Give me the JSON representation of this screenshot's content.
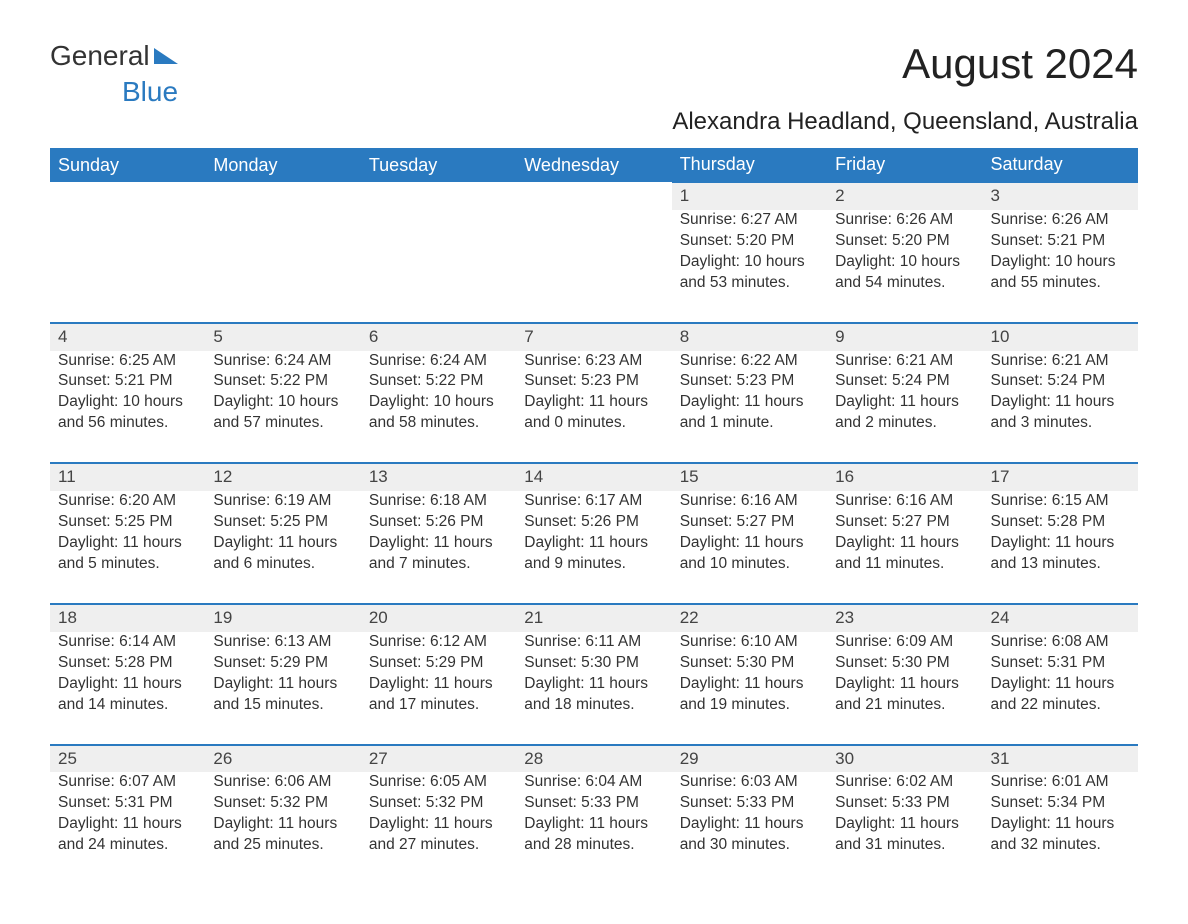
{
  "logo": {
    "text_general": "General",
    "text_blue": "Blue"
  },
  "title": "August 2024",
  "location": "Alexandra Headland, Queensland, Australia",
  "colors": {
    "accent": "#2a7ac0",
    "header_bg": "#2a7ac0",
    "header_text": "#ffffff",
    "daynum_bg": "#efefef",
    "text": "#333333",
    "background": "#ffffff"
  },
  "typography": {
    "title_fontsize": 42,
    "location_fontsize": 24,
    "header_fontsize": 18,
    "body_fontsize": 15.5,
    "logo_fontsize": 28
  },
  "calendar": {
    "columns": [
      "Sunday",
      "Monday",
      "Tuesday",
      "Wednesday",
      "Thursday",
      "Friday",
      "Saturday"
    ],
    "weeks": [
      [
        null,
        null,
        null,
        null,
        {
          "day": "1",
          "sunrise": "Sunrise: 6:27 AM",
          "sunset": "Sunset: 5:20 PM",
          "daylight1": "Daylight: 10 hours",
          "daylight2": "and 53 minutes."
        },
        {
          "day": "2",
          "sunrise": "Sunrise: 6:26 AM",
          "sunset": "Sunset: 5:20 PM",
          "daylight1": "Daylight: 10 hours",
          "daylight2": "and 54 minutes."
        },
        {
          "day": "3",
          "sunrise": "Sunrise: 6:26 AM",
          "sunset": "Sunset: 5:21 PM",
          "daylight1": "Daylight: 10 hours",
          "daylight2": "and 55 minutes."
        }
      ],
      [
        {
          "day": "4",
          "sunrise": "Sunrise: 6:25 AM",
          "sunset": "Sunset: 5:21 PM",
          "daylight1": "Daylight: 10 hours",
          "daylight2": "and 56 minutes."
        },
        {
          "day": "5",
          "sunrise": "Sunrise: 6:24 AM",
          "sunset": "Sunset: 5:22 PM",
          "daylight1": "Daylight: 10 hours",
          "daylight2": "and 57 minutes."
        },
        {
          "day": "6",
          "sunrise": "Sunrise: 6:24 AM",
          "sunset": "Sunset: 5:22 PM",
          "daylight1": "Daylight: 10 hours",
          "daylight2": "and 58 minutes."
        },
        {
          "day": "7",
          "sunrise": "Sunrise: 6:23 AM",
          "sunset": "Sunset: 5:23 PM",
          "daylight1": "Daylight: 11 hours",
          "daylight2": "and 0 minutes."
        },
        {
          "day": "8",
          "sunrise": "Sunrise: 6:22 AM",
          "sunset": "Sunset: 5:23 PM",
          "daylight1": "Daylight: 11 hours",
          "daylight2": "and 1 minute."
        },
        {
          "day": "9",
          "sunrise": "Sunrise: 6:21 AM",
          "sunset": "Sunset: 5:24 PM",
          "daylight1": "Daylight: 11 hours",
          "daylight2": "and 2 minutes."
        },
        {
          "day": "10",
          "sunrise": "Sunrise: 6:21 AM",
          "sunset": "Sunset: 5:24 PM",
          "daylight1": "Daylight: 11 hours",
          "daylight2": "and 3 minutes."
        }
      ],
      [
        {
          "day": "11",
          "sunrise": "Sunrise: 6:20 AM",
          "sunset": "Sunset: 5:25 PM",
          "daylight1": "Daylight: 11 hours",
          "daylight2": "and 5 minutes."
        },
        {
          "day": "12",
          "sunrise": "Sunrise: 6:19 AM",
          "sunset": "Sunset: 5:25 PM",
          "daylight1": "Daylight: 11 hours",
          "daylight2": "and 6 minutes."
        },
        {
          "day": "13",
          "sunrise": "Sunrise: 6:18 AM",
          "sunset": "Sunset: 5:26 PM",
          "daylight1": "Daylight: 11 hours",
          "daylight2": "and 7 minutes."
        },
        {
          "day": "14",
          "sunrise": "Sunrise: 6:17 AM",
          "sunset": "Sunset: 5:26 PM",
          "daylight1": "Daylight: 11 hours",
          "daylight2": "and 9 minutes."
        },
        {
          "day": "15",
          "sunrise": "Sunrise: 6:16 AM",
          "sunset": "Sunset: 5:27 PM",
          "daylight1": "Daylight: 11 hours",
          "daylight2": "and 10 minutes."
        },
        {
          "day": "16",
          "sunrise": "Sunrise: 6:16 AM",
          "sunset": "Sunset: 5:27 PM",
          "daylight1": "Daylight: 11 hours",
          "daylight2": "and 11 minutes."
        },
        {
          "day": "17",
          "sunrise": "Sunrise: 6:15 AM",
          "sunset": "Sunset: 5:28 PM",
          "daylight1": "Daylight: 11 hours",
          "daylight2": "and 13 minutes."
        }
      ],
      [
        {
          "day": "18",
          "sunrise": "Sunrise: 6:14 AM",
          "sunset": "Sunset: 5:28 PM",
          "daylight1": "Daylight: 11 hours",
          "daylight2": "and 14 minutes."
        },
        {
          "day": "19",
          "sunrise": "Sunrise: 6:13 AM",
          "sunset": "Sunset: 5:29 PM",
          "daylight1": "Daylight: 11 hours",
          "daylight2": "and 15 minutes."
        },
        {
          "day": "20",
          "sunrise": "Sunrise: 6:12 AM",
          "sunset": "Sunset: 5:29 PM",
          "daylight1": "Daylight: 11 hours",
          "daylight2": "and 17 minutes."
        },
        {
          "day": "21",
          "sunrise": "Sunrise: 6:11 AM",
          "sunset": "Sunset: 5:30 PM",
          "daylight1": "Daylight: 11 hours",
          "daylight2": "and 18 minutes."
        },
        {
          "day": "22",
          "sunrise": "Sunrise: 6:10 AM",
          "sunset": "Sunset: 5:30 PM",
          "daylight1": "Daylight: 11 hours",
          "daylight2": "and 19 minutes."
        },
        {
          "day": "23",
          "sunrise": "Sunrise: 6:09 AM",
          "sunset": "Sunset: 5:30 PM",
          "daylight1": "Daylight: 11 hours",
          "daylight2": "and 21 minutes."
        },
        {
          "day": "24",
          "sunrise": "Sunrise: 6:08 AM",
          "sunset": "Sunset: 5:31 PM",
          "daylight1": "Daylight: 11 hours",
          "daylight2": "and 22 minutes."
        }
      ],
      [
        {
          "day": "25",
          "sunrise": "Sunrise: 6:07 AM",
          "sunset": "Sunset: 5:31 PM",
          "daylight1": "Daylight: 11 hours",
          "daylight2": "and 24 minutes."
        },
        {
          "day": "26",
          "sunrise": "Sunrise: 6:06 AM",
          "sunset": "Sunset: 5:32 PM",
          "daylight1": "Daylight: 11 hours",
          "daylight2": "and 25 minutes."
        },
        {
          "day": "27",
          "sunrise": "Sunrise: 6:05 AM",
          "sunset": "Sunset: 5:32 PM",
          "daylight1": "Daylight: 11 hours",
          "daylight2": "and 27 minutes."
        },
        {
          "day": "28",
          "sunrise": "Sunrise: 6:04 AM",
          "sunset": "Sunset: 5:33 PM",
          "daylight1": "Daylight: 11 hours",
          "daylight2": "and 28 minutes."
        },
        {
          "day": "29",
          "sunrise": "Sunrise: 6:03 AM",
          "sunset": "Sunset: 5:33 PM",
          "daylight1": "Daylight: 11 hours",
          "daylight2": "and 30 minutes."
        },
        {
          "day": "30",
          "sunrise": "Sunrise: 6:02 AM",
          "sunset": "Sunset: 5:33 PM",
          "daylight1": "Daylight: 11 hours",
          "daylight2": "and 31 minutes."
        },
        {
          "day": "31",
          "sunrise": "Sunrise: 6:01 AM",
          "sunset": "Sunset: 5:34 PM",
          "daylight1": "Daylight: 11 hours",
          "daylight2": "and 32 minutes."
        }
      ]
    ]
  }
}
